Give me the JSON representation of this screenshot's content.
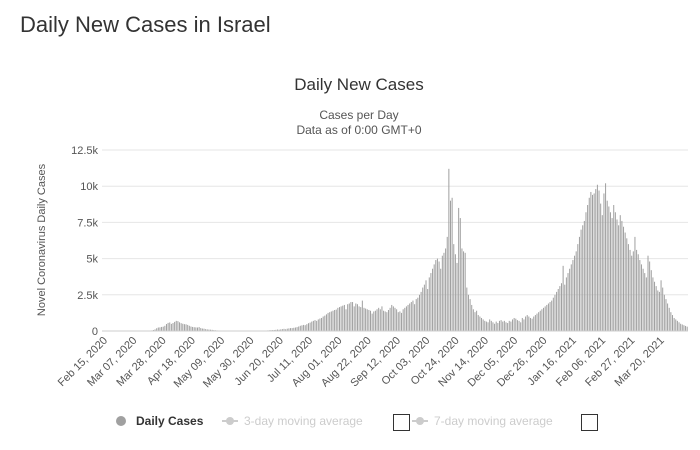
{
  "page": {
    "heading": "Daily New Cases in Israel"
  },
  "chart_data": {
    "type": "bar",
    "title": "Daily New Cases",
    "subtitle": [
      "Cases per Day",
      "Data as of 0:00 GMT+0"
    ],
    "ylabel": "Novel Coronavirus Daily Cases",
    "xlabel": "",
    "ylim": [
      0,
      12500
    ],
    "yticks": [
      0,
      2500,
      5000,
      7500,
      10000,
      12500
    ],
    "ytick_labels": [
      "0",
      "2.5k",
      "5k",
      "7.5k",
      "10k",
      "12.5k"
    ],
    "grid": true,
    "legend_position": "bottom",
    "x_start": "Feb 15, 2020",
    "x_end": "Apr 03, 2021",
    "xtick_labels": [
      "Feb 15, 2020",
      "Mar 07, 2020",
      "Mar 28, 2020",
      "Apr 18, 2020",
      "May 09, 2020",
      "May 30, 2020",
      "Jun 20, 2020",
      "Jul 11, 2020",
      "Aug 01, 2020",
      "Aug 22, 2020",
      "Sep 12, 2020",
      "Oct 03, 2020",
      "Oct 24, 2020",
      "Nov 14, 2020",
      "Dec 05, 2020",
      "Dec 26, 2020",
      "Jan 16, 2021",
      "Feb 06, 2021",
      "Feb 27, 2021",
      "Mar 20, 2021"
    ],
    "series": [
      {
        "name": "Daily Cases",
        "values": [
          0,
          0,
          0,
          0,
          0,
          0,
          0,
          0,
          0,
          0,
          0,
          0,
          0,
          0,
          0,
          0,
          0,
          0,
          0,
          0,
          0,
          0,
          0,
          0,
          0,
          0,
          0,
          0,
          0,
          0,
          40,
          70,
          110,
          190,
          240,
          250,
          280,
          300,
          360,
          480,
          560,
          590,
          490,
          550,
          630,
          700,
          680,
          600,
          540,
          500,
          470,
          460,
          420,
          360,
          310,
          280,
          260,
          250,
          240,
          270,
          200,
          170,
          160,
          130,
          110,
          100,
          90,
          80,
          60,
          50,
          40,
          30,
          20,
          10,
          10,
          10,
          10,
          20,
          20,
          20,
          20,
          20,
          20,
          10,
          10,
          10,
          10,
          10,
          10,
          10,
          10,
          10,
          10,
          10,
          10,
          10,
          10,
          20,
          20,
          20,
          30,
          40,
          50,
          60,
          60,
          70,
          80,
          100,
          90,
          110,
          130,
          150,
          120,
          160,
          180,
          200,
          200,
          220,
          240,
          270,
          310,
          360,
          390,
          420,
          400,
          470,
          540,
          580,
          650,
          700,
          750,
          700,
          800,
          860,
          900,
          1000,
          1060,
          1150,
          1250,
          1300,
          1350,
          1400,
          1450,
          1480,
          1600,
          1650,
          1700,
          1750,
          1800,
          1500,
          1850,
          1900,
          2000,
          2000,
          1700,
          1900,
          1850,
          1700,
          1650,
          2100,
          1600,
          1550,
          1500,
          1450,
          1400,
          1200,
          1350,
          1400,
          1500,
          1600,
          1500,
          1700,
          1400,
          1350,
          1300,
          1450,
          1600,
          1800,
          1700,
          1600,
          1500,
          1300,
          1350,
          1250,
          1500,
          1600,
          1700,
          1800,
          1900,
          2000,
          2100,
          1850,
          2200,
          2300,
          2500,
          2700,
          3000,
          3200,
          3500,
          2900,
          3700,
          4000,
          4300,
          4600,
          4900,
          5000,
          4800,
          4300,
          5200,
          5400,
          5700,
          6500,
          11200,
          9000,
          9200,
          6000,
          5300,
          4700,
          8500,
          7800,
          5700,
          5500,
          5400,
          3000,
          2500,
          2200,
          1800,
          1500,
          1300,
          1400,
          1100,
          1000,
          900,
          800,
          700,
          650,
          600,
          800,
          700,
          600,
          500,
          650,
          550,
          700,
          750,
          650,
          700,
          600,
          550,
          700,
          650,
          800,
          900,
          850,
          750,
          700,
          600,
          900,
          800,
          1000,
          1100,
          1000,
          900,
          850,
          1000,
          1100,
          1200,
          1300,
          1400,
          1500,
          1600,
          1700,
          1800,
          1900,
          2000,
          2100,
          2300,
          2500,
          2700,
          2900,
          3100,
          3300,
          4500,
          3200,
          3700,
          4000,
          4300,
          4600,
          4900,
          5200,
          5500,
          6000,
          6500,
          7000,
          7300,
          7600,
          8200,
          8700,
          9200,
          9600,
          9400,
          9500,
          9800,
          10100,
          9700,
          8800,
          8000,
          9500,
          10200,
          9000,
          8600,
          8200,
          7800,
          8700,
          8200,
          7700,
          7300,
          8000,
          7600,
          7200,
          6800,
          6400,
          6000,
          5600,
          5200,
          5500,
          6500,
          5600,
          5300,
          4900,
          4600,
          4300,
          4000,
          3700,
          5200,
          4800,
          4200,
          3700,
          3400,
          3100,
          2800,
          2700,
          3500,
          3000,
          2500,
          2200,
          1900,
          1600,
          1300,
          1100,
          900,
          800,
          700,
          600,
          500,
          450,
          400,
          350,
          300
        ]
      }
    ]
  },
  "legend": {
    "items": [
      {
        "label": "Daily Cases",
        "state": "active"
      },
      {
        "label": "3-day moving average",
        "state": "inactive"
      },
      {
        "label": "7-day moving average",
        "state": "inactive"
      }
    ]
  }
}
